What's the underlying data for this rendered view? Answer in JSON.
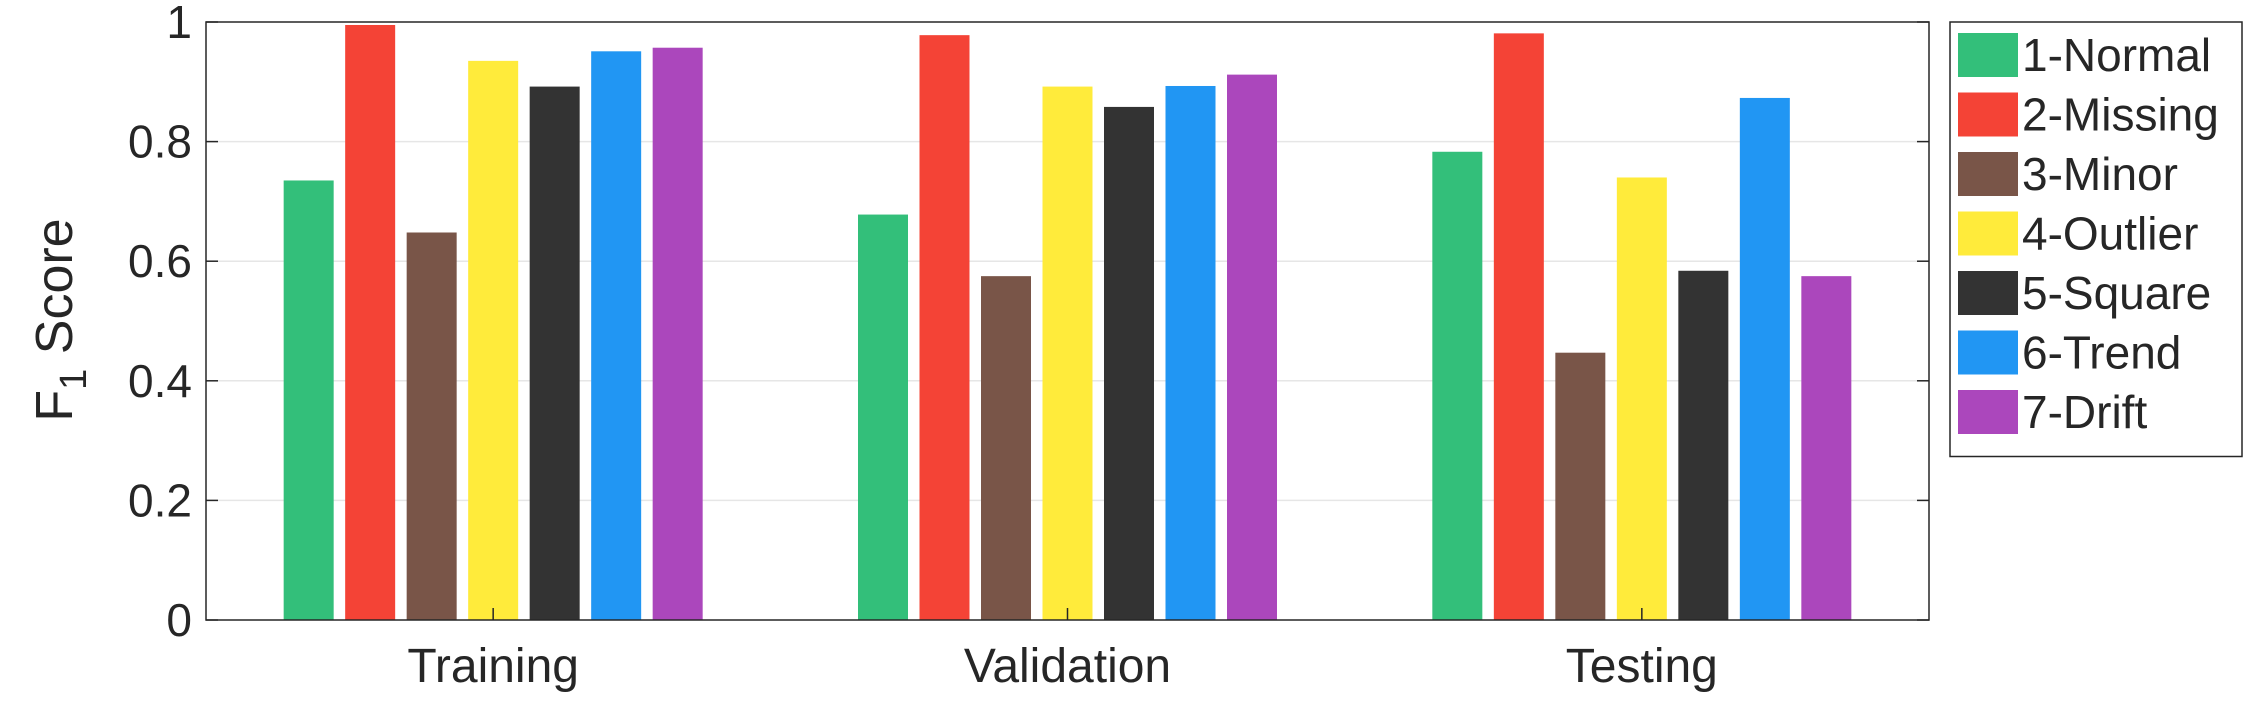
{
  "chart_data": {
    "type": "bar",
    "categories": [
      "Training",
      "Validation",
      "Testing"
    ],
    "series": [
      {
        "name": "1-Normal",
        "color": "#33BF7A",
        "values": [
          0.735,
          0.678,
          0.783
        ]
      },
      {
        "name": "2-Missing",
        "color": "#F44336",
        "values": [
          0.995,
          0.978,
          0.981
        ]
      },
      {
        "name": "3-Minor",
        "color": "#795548",
        "values": [
          0.648,
          0.575,
          0.447
        ]
      },
      {
        "name": "4-Outlier",
        "color": "#FFEB3B",
        "values": [
          0.935,
          0.892,
          0.74
        ]
      },
      {
        "name": "5-Square",
        "color": "#333333",
        "values": [
          0.892,
          0.858,
          0.584
        ]
      },
      {
        "name": "6-Trend",
        "color": "#2196F3",
        "values": [
          0.951,
          0.893,
          0.873
        ]
      },
      {
        "name": "7-Drift",
        "color": "#AB47BC",
        "values": [
          0.957,
          0.912,
          0.575
        ]
      }
    ],
    "y_ticks": [
      "0",
      "0.2",
      "0.4",
      "0.6",
      "0.8",
      "1"
    ],
    "y_tick_values": [
      0,
      0.2,
      0.4,
      0.6,
      0.8,
      1
    ],
    "ylim": [
      0,
      1
    ],
    "ylabel": {
      "main": "F",
      "sub": "1",
      "rest": " Score"
    },
    "xlabel": "",
    "title": "",
    "grid": "horizontal",
    "legend": "outside-right"
  }
}
